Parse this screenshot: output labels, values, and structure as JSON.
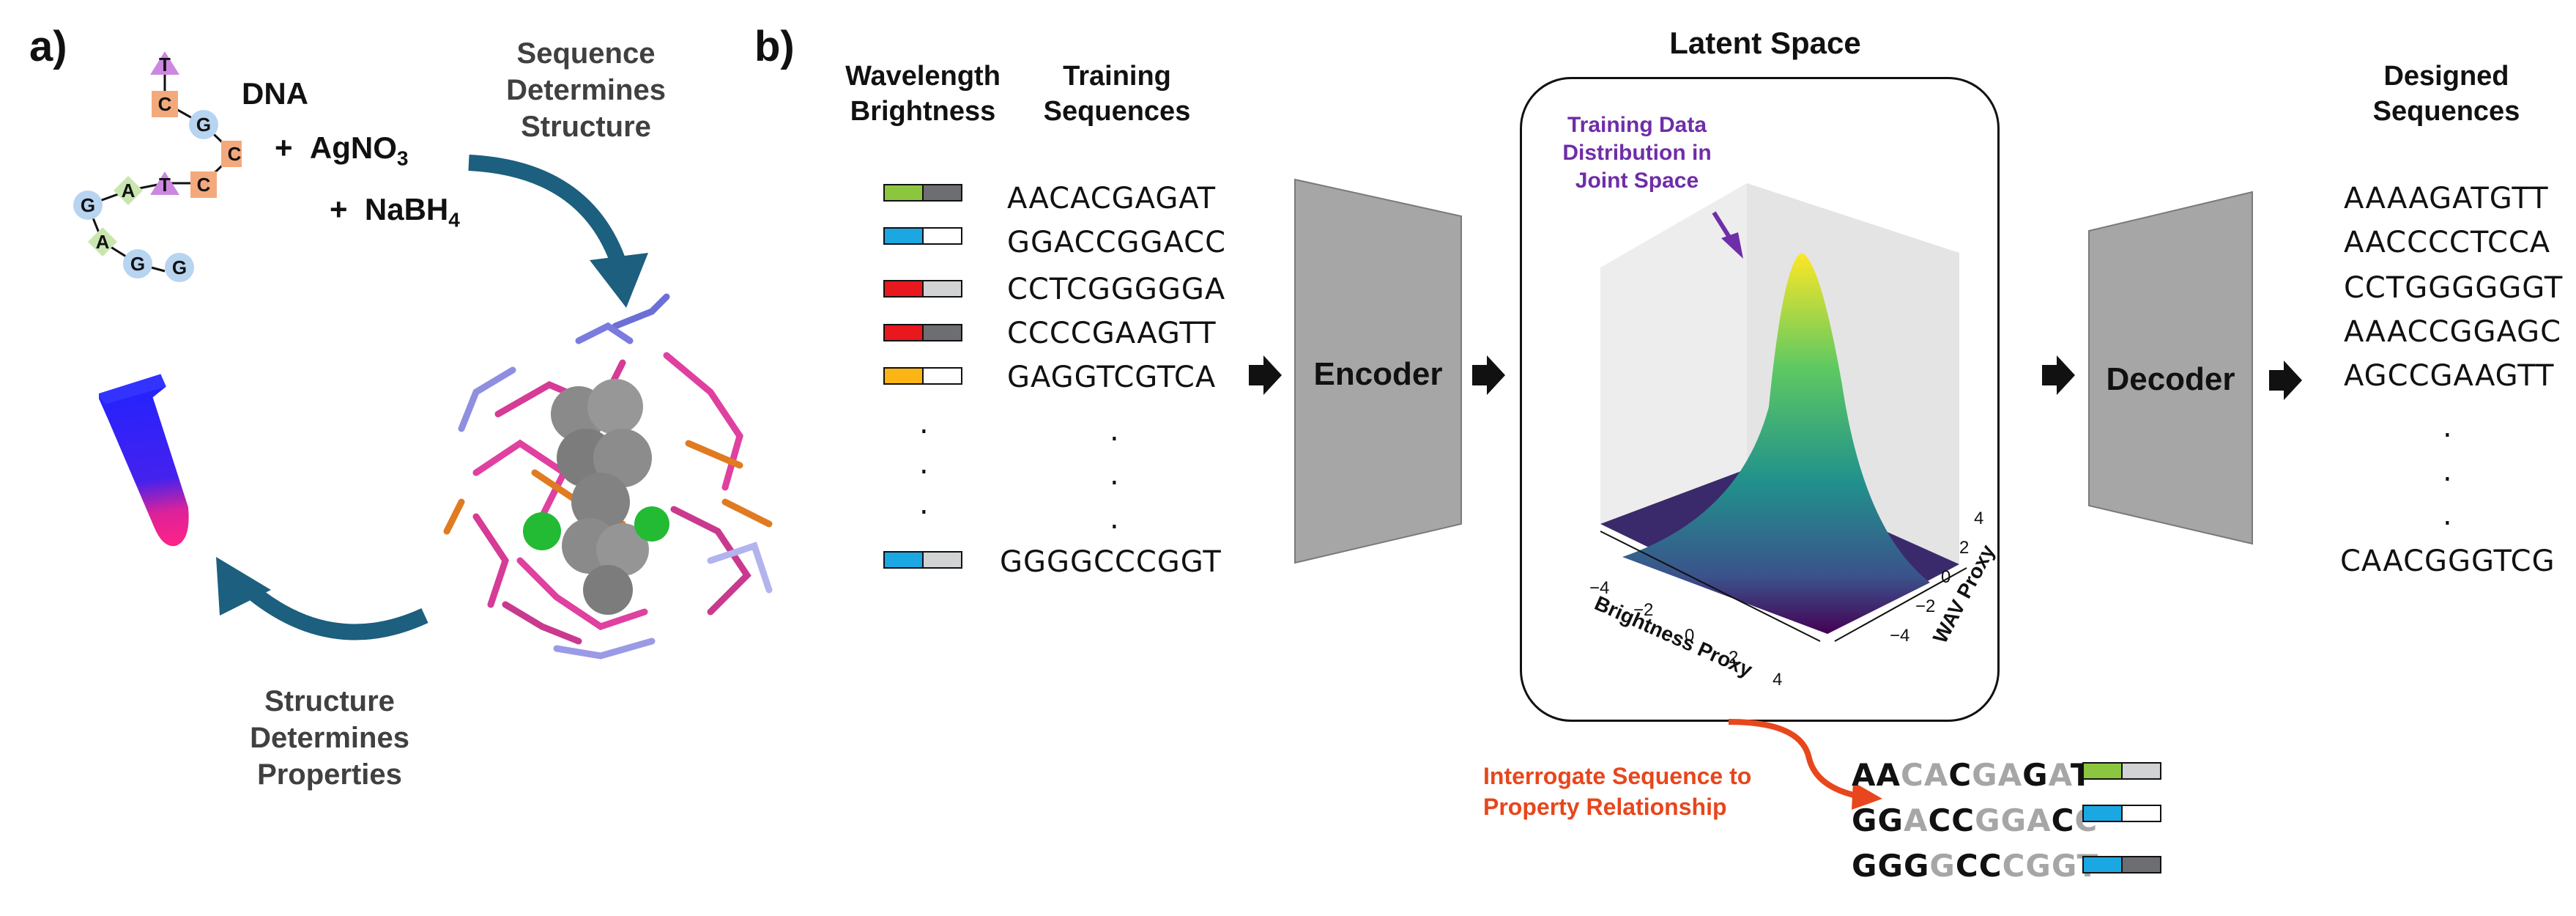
{
  "panel_a": {
    "label": "a)",
    "dna_label": "DNA",
    "reagent_1_plus": "+",
    "reagent_1_formula": "AgNO",
    "reagent_1_sub": "3",
    "reagent_2_plus": "+",
    "reagent_2_formula": "NaBH",
    "reagent_2_sub": "4",
    "sequence_determines_structure": [
      "Sequence",
      "Determines",
      "Structure"
    ],
    "structure_determines_properties": [
      "Structure",
      "Determines",
      "Properties"
    ],
    "strand_bases": [
      "T",
      "C",
      "G",
      "C",
      "C",
      "T",
      "A",
      "G",
      "A",
      "G",
      "G"
    ]
  },
  "panel_b": {
    "label": "b)",
    "col_wavelength": [
      "Wavelength",
      "Brightness"
    ],
    "col_training": [
      "Training",
      "Sequences"
    ],
    "training_sequences": [
      "AACACGAGAT",
      "GGACCGGACC",
      "CCTCGGGGGA",
      "CCCCGAAGTT",
      "GAGGTCGTCA",
      "GGGGCCCGGT"
    ],
    "ellipsis": ".",
    "encoder_label": "Encoder",
    "decoder_label": "Decoder",
    "latent_title": "Latent Space",
    "training_note": [
      "Training Data",
      "Distribution in",
      "Joint Space"
    ],
    "axis_brightness": "Brightness Proxy",
    "axis_wav": "WAV Proxy",
    "brightness_ticks": [
      "−4",
      "−2",
      "0",
      "2",
      "4"
    ],
    "wav_ticks": [
      "4",
      "2",
      "0",
      "−2",
      "−4"
    ],
    "col_designed": [
      "Designed",
      "Sequences"
    ],
    "designed_sequences": [
      "AAAAGATGTT",
      "AACCCCTCCA",
      "CCTGGGGGGT",
      "AAACCGGAGC",
      "AGCCGAAGTT",
      "CAACGGGTCG"
    ],
    "interrogate_label": [
      "Interrogate Sequence to",
      "Property Relationship"
    ],
    "interrogated": [
      [
        "AA",
        "CA",
        "C",
        "GA",
        "G",
        "A",
        "T"
      ],
      [
        "GG",
        "A",
        "CC",
        "GGA",
        "C",
        "C"
      ],
      [
        "GGG",
        "G",
        "CC",
        "CGGT"
      ]
    ]
  },
  "colors": {
    "green": "#8cc63f",
    "blue": "#1ba7e1",
    "red": "#e8181e",
    "orange": "#fdb515",
    "dark_grey": "#6d6e71",
    "light_grey": "#d1d3d4",
    "white": "#ffffff",
    "arrow_teal": "#1c5f7e",
    "purple_note": "#6f2da8",
    "orange_note": "#e8461c",
    "box_grey": "#a6a6a6"
  }
}
